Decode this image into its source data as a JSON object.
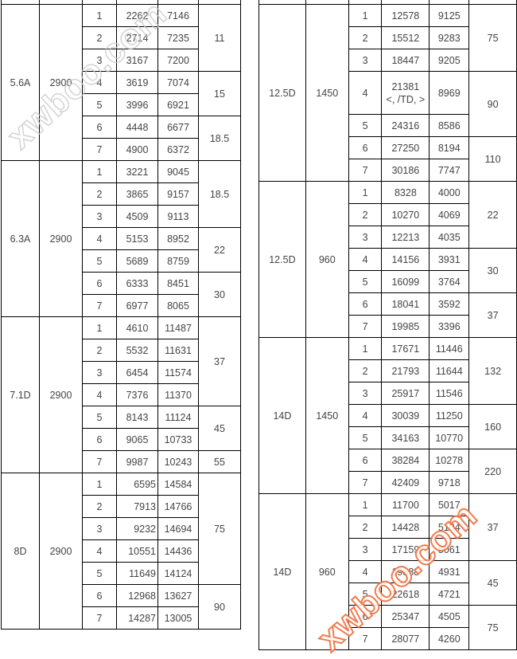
{
  "watermark": "xwboo.com",
  "left_table": [
    {
      "model": "5.6A",
      "speed": "2900",
      "rows": [
        [
          "1",
          "2262",
          "7146"
        ],
        [
          "2",
          "2714",
          "7235"
        ],
        [
          "3",
          "3167",
          "7200"
        ],
        [
          "4",
          "3619",
          "7074"
        ],
        [
          "5",
          "3996",
          "6921"
        ],
        [
          "6",
          "4448",
          "6677"
        ],
        [
          "7",
          "4900",
          "6372"
        ]
      ],
      "power": [
        {
          "value": "11",
          "span": 3
        },
        {
          "value": "15",
          "span": 2
        },
        {
          "value": "18.5",
          "span": 2
        }
      ]
    },
    {
      "model": "6.3A",
      "speed": "2900",
      "rows": [
        [
          "1",
          "3221",
          "9045"
        ],
        [
          "2",
          "3865",
          "9157"
        ],
        [
          "3",
          "4509",
          "9113"
        ],
        [
          "4",
          "5153",
          "8952"
        ],
        [
          "5",
          "5689",
          "8759"
        ],
        [
          "6",
          "6333",
          "8451"
        ],
        [
          "7",
          "6977",
          "8065"
        ]
      ],
      "power": [
        {
          "value": "18.5",
          "span": 3
        },
        {
          "value": "22",
          "span": 2
        },
        {
          "value": "30",
          "span": 2
        }
      ]
    },
    {
      "model": "7.1D",
      "speed": "2900",
      "rows": [
        [
          "1",
          "4610",
          "11487"
        ],
        [
          "2",
          "5532",
          "11631"
        ],
        [
          "3",
          "6454",
          "11574"
        ],
        [
          "4",
          "7376",
          "11370"
        ],
        [
          "5",
          "8143",
          "11124"
        ],
        [
          "6",
          "9065",
          "10733"
        ],
        [
          "7",
          "9987",
          "10243"
        ]
      ],
      "power": [
        {
          "value": "37",
          "span": 4
        },
        {
          "value": "45",
          "span": 2
        },
        {
          "value": "55",
          "span": 1
        }
      ]
    },
    {
      "model": "8D",
      "speed": "2900",
      "flow_right_aligned": true,
      "rows": [
        [
          "1",
          "6595",
          "14584"
        ],
        [
          "2",
          "7913",
          "14766"
        ],
        [
          "3",
          "9232",
          "14694"
        ],
        [
          "4",
          "10551",
          "14436"
        ],
        [
          "5",
          "11649",
          "14124"
        ],
        [
          "6",
          "12968",
          "13627"
        ],
        [
          "7",
          "14287",
          "13005"
        ]
      ],
      "power": [
        {
          "value": "75",
          "span": 5
        },
        {
          "value": "90",
          "span": 2
        }
      ]
    }
  ],
  "right_table": [
    {
      "model": "12.5D",
      "speed": "1450",
      "rows": [
        [
          "1",
          "12578",
          "9125"
        ],
        [
          "2",
          "15512",
          "9283"
        ],
        [
          "3",
          "18447",
          "9205"
        ],
        [
          "4",
          "21381",
          "8969",
          "<, /TD, >"
        ],
        [
          "5",
          "24316",
          "8586"
        ],
        [
          "6",
          "27250",
          "8194"
        ],
        [
          "7",
          "30186",
          "7747"
        ]
      ],
      "power": [
        {
          "value": "75",
          "span": 3
        },
        {
          "value": "90",
          "span": 2
        },
        {
          "value": "110",
          "span": 2
        }
      ]
    },
    {
      "model": "12.5D",
      "speed": "960",
      "rows": [
        [
          "1",
          "8328",
          "4000"
        ],
        [
          "2",
          "10270",
          "4069"
        ],
        [
          "3",
          "12213",
          "4035"
        ],
        [
          "4",
          "14156",
          "3931"
        ],
        [
          "5",
          "16099",
          "3764"
        ],
        [
          "6",
          "18041",
          "3592"
        ],
        [
          "7",
          "19985",
          "3396"
        ]
      ],
      "power": [
        {
          "value": "22",
          "span": 3
        },
        {
          "value": "30",
          "span": 2
        },
        {
          "value": "37",
          "span": 2
        }
      ]
    },
    {
      "model": "14D",
      "speed": "1450",
      "rows": [
        [
          "1",
          "17671",
          "11446"
        ],
        [
          "2",
          "21793",
          "11644"
        ],
        [
          "3",
          "25917",
          "11546"
        ],
        [
          "4",
          "30039",
          "11250"
        ],
        [
          "5",
          "34163",
          "10770"
        ],
        [
          "6",
          "38284",
          "10278"
        ],
        [
          "7",
          "42409",
          "9718"
        ]
      ],
      "power": [
        {
          "value": "132",
          "span": 3
        },
        {
          "value": "160",
          "span": 2
        },
        {
          "value": "220",
          "span": 2
        }
      ]
    },
    {
      "model": "14D",
      "speed": "960",
      "rows": [
        [
          "1",
          "11700",
          "5017"
        ],
        [
          "2",
          "14428",
          "5104"
        ],
        [
          "3",
          "17159",
          "5061"
        ],
        [
          "4",
          "19888",
          "4931"
        ],
        [
          "5",
          "22618",
          "4721"
        ],
        [
          "6",
          "25347",
          "4505"
        ],
        [
          "7",
          "28077",
          "4260"
        ]
      ],
      "power": [
        {
          "value": "37",
          "span": 3
        },
        {
          "value": "45",
          "span": 2
        },
        {
          "value": "75",
          "span": 2
        }
      ]
    }
  ]
}
